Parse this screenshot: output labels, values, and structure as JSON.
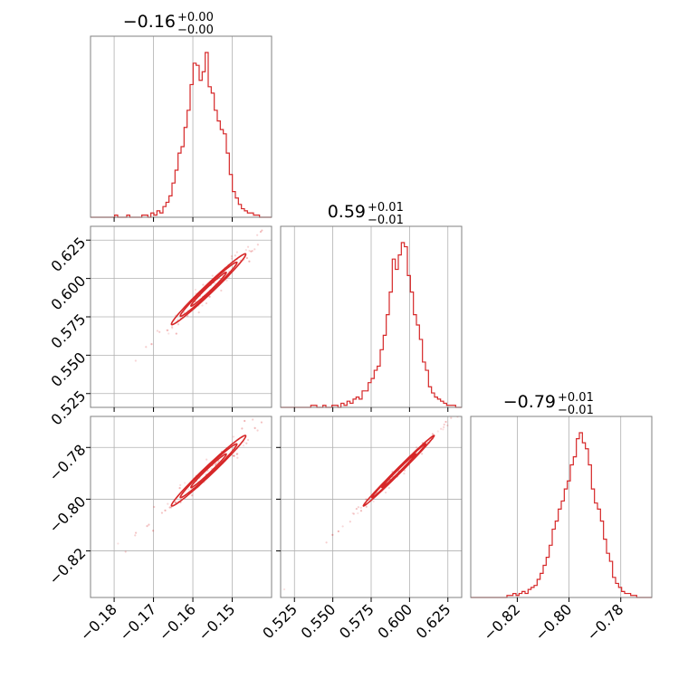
{
  "chart_data": {
    "type": "corner",
    "color": "#d62728",
    "parameters": [
      {
        "range": [
          -0.186,
          -0.14
        ],
        "ticks": [
          -0.18,
          -0.17,
          -0.16,
          -0.15
        ],
        "tick_labels": [
          "−0.18",
          "−0.17",
          "−0.16",
          "−0.15"
        ],
        "title": {
          "value": "−0.16",
          "upper": "+0.00",
          "lower": "−0.00"
        },
        "median": -0.156,
        "sigma": 0.0045
      },
      {
        "range": [
          0.516,
          0.634
        ],
        "ticks": [
          0.525,
          0.55,
          0.575,
          0.6,
          0.625
        ],
        "tick_labels": [
          "0.525",
          "0.550",
          "0.575",
          "0.600",
          "0.625"
        ],
        "title": {
          "value": "0.59",
          "upper": "+0.01",
          "lower": "−0.01"
        },
        "median": 0.593,
        "sigma": 0.011
      },
      {
        "range": [
          -0.838,
          -0.768
        ],
        "ticks": [
          -0.82,
          -0.8,
          -0.78
        ],
        "tick_labels": [
          "−0.82",
          "−0.80",
          "−0.78"
        ],
        "title": {
          "value": "−0.79",
          "upper": "+0.01",
          "lower": "−0.01"
        },
        "median": -0.789,
        "sigma": 0.0065
      }
    ],
    "histograms": [
      {
        "bins": 60,
        "values": [
          0,
          0,
          0,
          0,
          0,
          0,
          0,
          0,
          1,
          0,
          0,
          0,
          1,
          0,
          0,
          0,
          0,
          1,
          1,
          0,
          2,
          1,
          3,
          2,
          5,
          7,
          10,
          16,
          22,
          30,
          33,
          42,
          50,
          62,
          72,
          71,
          64,
          68,
          77,
          61,
          58,
          50,
          45,
          41,
          39,
          30,
          20,
          12,
          9,
          6,
          4,
          3,
          2,
          2,
          1,
          1,
          0,
          0,
          0,
          0
        ]
      },
      {
        "bins": 60,
        "values": [
          0,
          0,
          0,
          0,
          0,
          0,
          0,
          0,
          0,
          0,
          1,
          1,
          0,
          0,
          1,
          0,
          0,
          1,
          1,
          0,
          2,
          1,
          3,
          2,
          4,
          5,
          4,
          8,
          8,
          12,
          14,
          18,
          20,
          28,
          35,
          45,
          56,
          72,
          67,
          74,
          80,
          78,
          64,
          56,
          45,
          40,
          33,
          22,
          18,
          10,
          7,
          5,
          4,
          3,
          2,
          1,
          1,
          1,
          0,
          0
        ]
      },
      {
        "bins": 60,
        "values": [
          0,
          0,
          0,
          0,
          0,
          0,
          0,
          0,
          0,
          0,
          0,
          0,
          1,
          1,
          2,
          1,
          2,
          3,
          2,
          4,
          5,
          6,
          9,
          12,
          16,
          20,
          26,
          34,
          38,
          44,
          48,
          54,
          58,
          66,
          70,
          79,
          82,
          77,
          74,
          66,
          54,
          47,
          44,
          38,
          29,
          22,
          18,
          10,
          7,
          5,
          3,
          2,
          2,
          1,
          1,
          0,
          0,
          0,
          0,
          0
        ]
      }
    ],
    "pairs": [
      {
        "x_param": 0,
        "y_param": 1,
        "correlation": 0.985
      },
      {
        "x_param": 0,
        "y_param": 2,
        "correlation": 0.985
      },
      {
        "x_param": 1,
        "y_param": 2,
        "correlation": 0.995
      }
    ],
    "contour_levels_sigma": [
      1,
      1.6,
      2.1
    ],
    "grid": true
  }
}
